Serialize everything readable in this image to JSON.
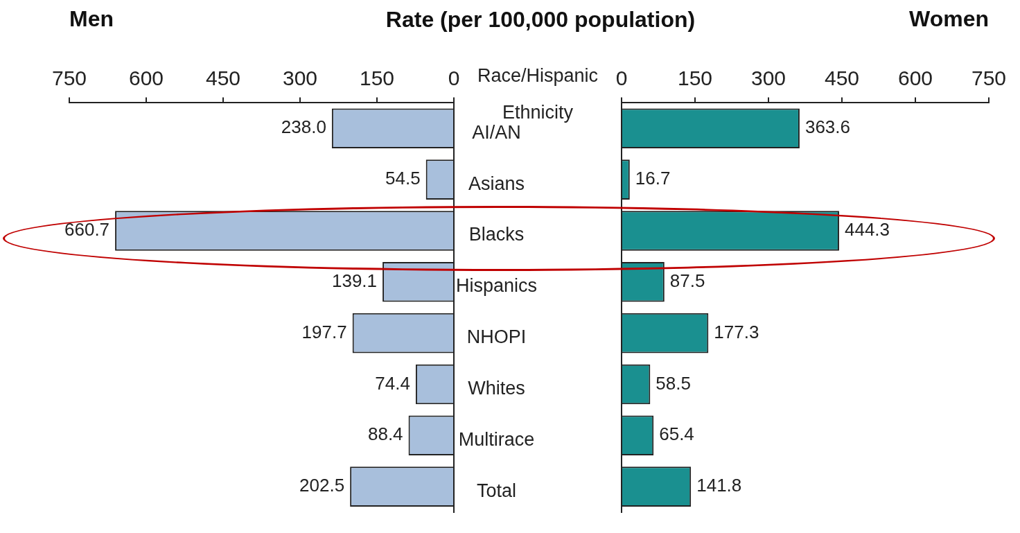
{
  "chart_data": [
    {
      "type": "bar",
      "orientation": "horizontal",
      "title": "Men",
      "xlabel": "Rate (per 100,000 population)",
      "ylabel": "Race/Hispanic Ethnicity",
      "categories": [
        "AI/AN",
        "Asians",
        "Blacks",
        "Hispanics",
        "NHOPI",
        "Whites",
        "Multirace",
        "Total"
      ],
      "values": [
        238.0,
        54.5,
        660.7,
        139.1,
        197.7,
        74.4,
        88.4,
        202.5
      ],
      "value_labels": [
        "238.0",
        "54.5",
        "660.7",
        "139.1",
        "197.7",
        "74.4",
        "88.4",
        "202.5"
      ],
      "color": "#a8bfdc",
      "xlim": [
        750,
        0
      ],
      "xticks": [
        750,
        600,
        450,
        300,
        150,
        0
      ]
    },
    {
      "type": "bar",
      "orientation": "horizontal",
      "title": "Women",
      "categories": [
        null,
        null,
        null,
        null,
        null,
        null,
        null,
        null
      ],
      "values": [
        363.6,
        16.7,
        444.3,
        87.5,
        177.3,
        58.5,
        65.4,
        141.8
      ],
      "value_labels": [
        "363.6",
        "16.7",
        "444.3",
        "87.5",
        "177.3",
        "58.5",
        "65.4",
        "141.8"
      ],
      "color": "#1a9090",
      "xlim": [
        0,
        750
      ],
      "xticks": [
        0,
        150,
        300,
        450,
        600,
        750
      ],
      "tick_labels": "x"
    }
  ]
}
